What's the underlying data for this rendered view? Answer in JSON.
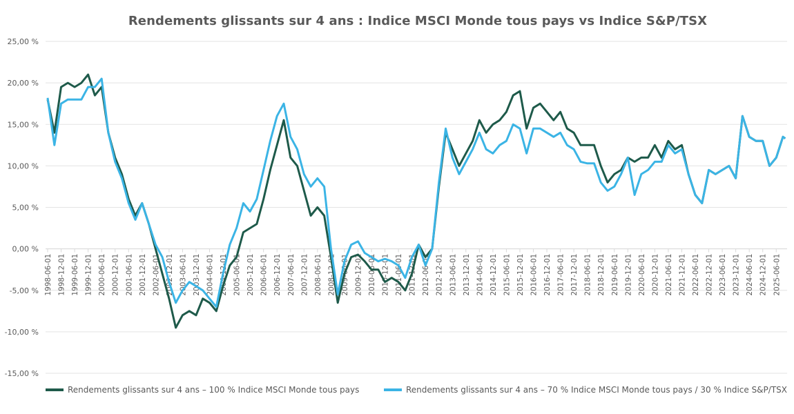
{
  "chart_data": {
    "type": "line",
    "title": "Rendements glissants sur 4 ans : Indice MSCI Monde tous pays vs Indice S&P/TSX",
    "xlabel": "",
    "ylabel": "",
    "ylim": [
      -15,
      25
    ],
    "y_ticks": [
      25,
      20,
      15,
      10,
      5,
      0,
      -5,
      -10,
      -15
    ],
    "y_tick_labels": [
      "25,00 %",
      "20,00 %",
      "15,00 %",
      "10,00 %",
      "5,00 %",
      "0,00 %",
      "-5,00 %",
      "-10,00 %",
      "-15,00 %"
    ],
    "x_tick_labels": [
      "1998-06-01",
      "1998-12-01",
      "1999-06-01",
      "1999-12-01",
      "2000-06-01",
      "2000-12-01",
      "2001-06-01",
      "2001-12-01",
      "2002-06-01",
      "2002-12-01",
      "2003-06-01",
      "2003-12-01",
      "2004-06-01",
      "2004-12-01",
      "2005-06-01",
      "2005-12-01",
      "2006-06-01",
      "2006-12-01",
      "2007-06-01",
      "2007-12-01",
      "2008-06-01",
      "2008-12-01",
      "2009-06-01",
      "2009-12-01",
      "2010-06-01",
      "2010-12-01",
      "2011-06-01",
      "2011-12-01",
      "2012-06-01",
      "2012-12-01",
      "2013-06-01",
      "2013-12-01",
      "2014-06-01",
      "2014-12-01",
      "2015-06-01",
      "2015-12-01",
      "2016-06-01",
      "2016-12-01",
      "2017-06-01",
      "2017-12-01",
      "2018-06-01",
      "2018-12-01",
      "2019-06-01",
      "2019-12-01",
      "2020-06-01",
      "2020-12-01",
      "2021-06-01",
      "2021-12-01",
      "2022-06-01",
      "2022-12-01",
      "2023-06-01",
      "2023-12-01",
      "2024-06-01",
      "2024-12-01",
      "2025-06-01"
    ],
    "grid": true,
    "legend_position": "bottom",
    "x": [
      "1998-06",
      "1998-09",
      "1998-12",
      "1999-03",
      "1999-06",
      "1999-09",
      "1999-12",
      "2000-03",
      "2000-06",
      "2000-09",
      "2000-12",
      "2001-03",
      "2001-06",
      "2001-09",
      "2001-12",
      "2002-03",
      "2002-06",
      "2002-09",
      "2002-12",
      "2003-03",
      "2003-06",
      "2003-09",
      "2003-12",
      "2004-03",
      "2004-06",
      "2004-09",
      "2004-12",
      "2005-03",
      "2005-06",
      "2005-09",
      "2005-12",
      "2006-03",
      "2006-06",
      "2006-09",
      "2006-12",
      "2007-03",
      "2007-06",
      "2007-09",
      "2007-12",
      "2008-03",
      "2008-06",
      "2008-09",
      "2008-12",
      "2009-03",
      "2009-06",
      "2009-09",
      "2009-12",
      "2010-03",
      "2010-06",
      "2010-09",
      "2010-12",
      "2011-03",
      "2011-06",
      "2011-09",
      "2011-12",
      "2012-03",
      "2012-06",
      "2012-09",
      "2012-12",
      "2013-03",
      "2013-06",
      "2013-09",
      "2013-12",
      "2014-03",
      "2014-06",
      "2014-09",
      "2014-12",
      "2015-03",
      "2015-06",
      "2015-09",
      "2015-12",
      "2016-03",
      "2016-06",
      "2016-09",
      "2016-12",
      "2017-03",
      "2017-06",
      "2017-09",
      "2017-12",
      "2018-03",
      "2018-06",
      "2018-09",
      "2018-12",
      "2019-03",
      "2019-06",
      "2019-09",
      "2019-12",
      "2020-03",
      "2020-06",
      "2020-09",
      "2020-12",
      "2021-03",
      "2021-06",
      "2021-09",
      "2021-12",
      "2022-03",
      "2022-06",
      "2022-09",
      "2022-12",
      "2023-03",
      "2023-06",
      "2023-09",
      "2023-12",
      "2024-03",
      "2024-06",
      "2024-09",
      "2024-12",
      "2025-03",
      "2025-06",
      "2025-09",
      "2025-10"
    ],
    "series": [
      {
        "name": "Rendements glissants sur 4 ans – 100 % Indice MSCI Monde tous pays",
        "color": "#1e5a4a",
        "values": [
          18,
          14,
          19.5,
          20,
          19.5,
          20,
          21,
          18.5,
          19.5,
          14,
          11,
          9,
          6,
          4,
          5.5,
          3,
          0,
          -3,
          -6,
          -9.5,
          -8,
          -7.5,
          -8,
          -6,
          -6.5,
          -7.5,
          -4.5,
          -2,
          -1,
          2,
          2.5,
          3,
          6,
          9.5,
          12.5,
          15.5,
          11,
          10,
          7,
          4,
          5,
          4,
          -1,
          -6.5,
          -3,
          -1,
          -0.7,
          -1.5,
          -2.5,
          -2.5,
          -4,
          -3.5,
          -4,
          -5,
          -3,
          0.5,
          -1,
          0,
          7.5,
          14,
          12,
          10,
          11.5,
          13,
          15.5,
          14,
          15,
          15.5,
          16.5,
          18.5,
          19,
          14.5,
          17,
          17.5,
          16.5,
          15.5,
          16.5,
          14.5,
          14,
          12.5,
          12.5,
          12.5,
          10,
          8,
          9,
          9.5,
          11,
          10.5,
          11,
          11,
          12.5,
          11,
          13,
          12,
          12.5,
          9,
          6.5,
          5.5,
          9.5,
          9,
          9.5,
          10,
          8.5,
          16,
          13.5,
          13,
          13,
          10,
          11,
          13.5,
          13.3
        ]
      },
      {
        "name": "Rendements glissants sur 4 ans – 70 % Indice MSCI Monde tous pays / 30 % Indice S&P/TSX",
        "color": "#3bb4e5",
        "values": [
          18.2,
          12.5,
          17.5,
          18,
          18,
          18,
          19.5,
          19.5,
          20.5,
          14,
          10.5,
          8.5,
          5.5,
          3.5,
          5.5,
          3,
          0.5,
          -1,
          -4,
          -6.5,
          -5,
          -4,
          -4.5,
          -5,
          -6,
          -7,
          -3,
          0.5,
          2.5,
          5.5,
          4.5,
          6,
          9.5,
          13,
          16,
          17.5,
          13.5,
          12,
          9,
          7.5,
          8.5,
          7.5,
          0,
          -5.5,
          -1.5,
          0.5,
          0.9,
          -0.5,
          -1,
          -1.5,
          -1.2,
          -1.5,
          -2,
          -3.5,
          -1,
          0.5,
          -2,
          0,
          8,
          14.5,
          11,
          9,
          10.5,
          12,
          14,
          12,
          11.5,
          12.5,
          13,
          15,
          14.5,
          11.5,
          14.5,
          14.5,
          14,
          13.5,
          14,
          12.5,
          12,
          10.5,
          10.3,
          10.3,
          8,
          7,
          7.5,
          9,
          11,
          6.5,
          9,
          9.5,
          10.5,
          10.5,
          12.5,
          11.5,
          12,
          9,
          6.5,
          5.5,
          9.5,
          9,
          9.5,
          10,
          8.5,
          16,
          13.5,
          13,
          13,
          10,
          11,
          13.5,
          13.3
        ]
      }
    ]
  }
}
